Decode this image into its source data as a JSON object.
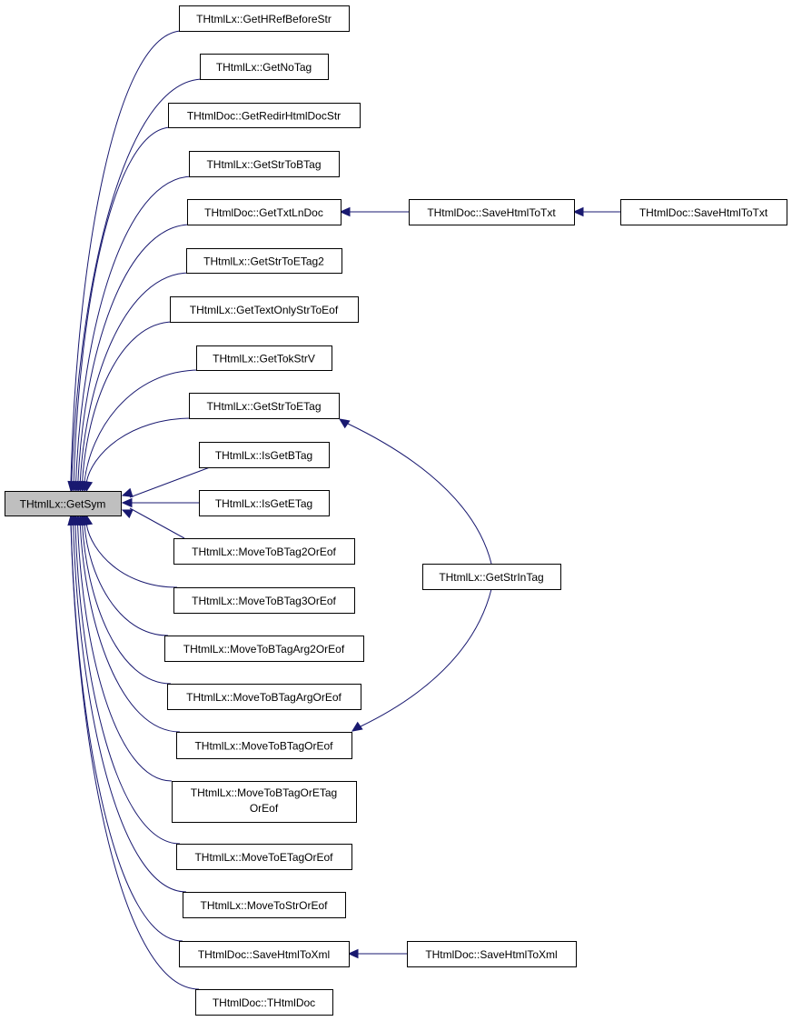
{
  "graph": {
    "edge_color": "#191970",
    "focus_fill": "#bfbfbf",
    "focus": {
      "id": "getsym",
      "label": "THtmlLx::GetSym"
    },
    "callers": [
      {
        "id": "n1",
        "label": "THtmlLx::GetHRefBeforeStr"
      },
      {
        "id": "n2",
        "label": "THtmlLx::GetNoTag"
      },
      {
        "id": "n3",
        "label": "THtmlDoc::GetRedirHtmlDocStr"
      },
      {
        "id": "n4",
        "label": "THtmlLx::GetStrToBTag"
      },
      {
        "id": "n5",
        "label": "THtmlDoc::GetTxtLnDoc"
      },
      {
        "id": "n6",
        "label": "THtmlLx::GetStrToETag2"
      },
      {
        "id": "n7",
        "label": "THtmlLx::GetTextOnlyStrToEof"
      },
      {
        "id": "n8",
        "label": "THtmlLx::GetTokStrV"
      },
      {
        "id": "n9",
        "label": "THtmlLx::GetStrToETag"
      },
      {
        "id": "n10",
        "label": "THtmlLx::IsGetBTag"
      },
      {
        "id": "n11",
        "label": "THtmlLx::IsGetETag"
      },
      {
        "id": "n12",
        "label": "THtmlLx::MoveToBTag2OrEof"
      },
      {
        "id": "n13",
        "label": "THtmlLx::MoveToBTag3OrEof"
      },
      {
        "id": "n14",
        "label": "THtmlLx::MoveToBTagArg2OrEof"
      },
      {
        "id": "n15",
        "label": "THtmlLx::MoveToBTagArgOrEof"
      },
      {
        "id": "n16",
        "label": "THtmlLx::MoveToBTagOrEof"
      },
      {
        "id": "n17",
        "label": "THtmlLx::MoveToBTagOrETag",
        "label2": "OrEof"
      },
      {
        "id": "n18",
        "label": "THtmlLx::MoveToETagOrEof"
      },
      {
        "id": "n19",
        "label": "THtmlLx::MoveToStrOrEof"
      },
      {
        "id": "n20",
        "label": "THtmlDoc::SaveHtmlToXml"
      },
      {
        "id": "n21",
        "label": "THtmlDoc::THtmlDoc"
      }
    ],
    "secondary": [
      {
        "id": "s1",
        "label": "THtmlDoc::SaveHtmlToTxt"
      },
      {
        "id": "s2",
        "label": "THtmlDoc::SaveHtmlToTxt"
      },
      {
        "id": "s3",
        "label": "THtmlLx::GetStrInTag"
      },
      {
        "id": "s4",
        "label": "THtmlDoc::SaveHtmlToXml"
      }
    ],
    "secondary_edges": [
      {
        "from": "s1",
        "to": "n5"
      },
      {
        "from": "s2",
        "to": "s1"
      },
      {
        "from": "s3",
        "to": "n9"
      },
      {
        "from": "s3",
        "to": "n16"
      },
      {
        "from": "s4",
        "to": "n20"
      }
    ]
  }
}
